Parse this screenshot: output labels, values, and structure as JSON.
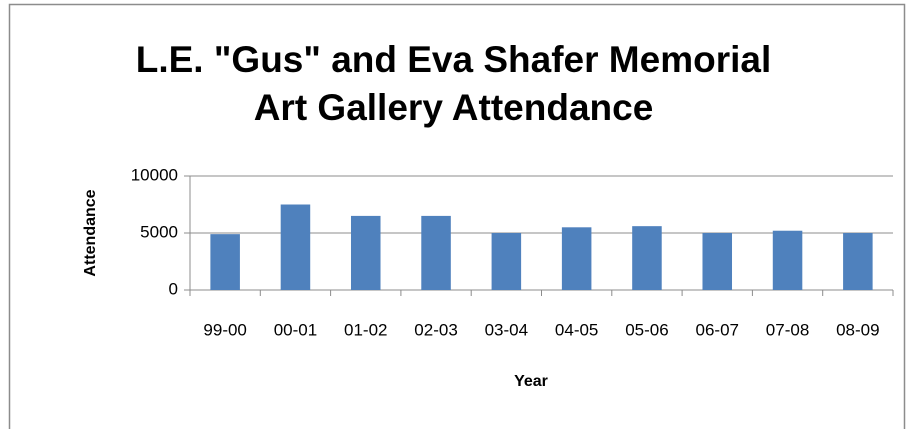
{
  "chart_data": {
    "type": "bar",
    "title": "L.E. \"Gus\" and Eva Shafer Memorial\nArt Gallery Attendance",
    "x_label": "Year",
    "y_label": "Attendance",
    "categories": [
      "99-00",
      "00-01",
      "01-02",
      "02-03",
      "03-04",
      "04-05",
      "05-06",
      "06-07",
      "07-08",
      "08-09"
    ],
    "values": [
      4900,
      7500,
      6500,
      6500,
      5000,
      5500,
      5600,
      5000,
      5200,
      5000
    ],
    "color": "#4f81bd",
    "ylim": [
      0,
      10000
    ],
    "yticks": [
      0,
      5000,
      10000
    ],
    "grid": true
  }
}
